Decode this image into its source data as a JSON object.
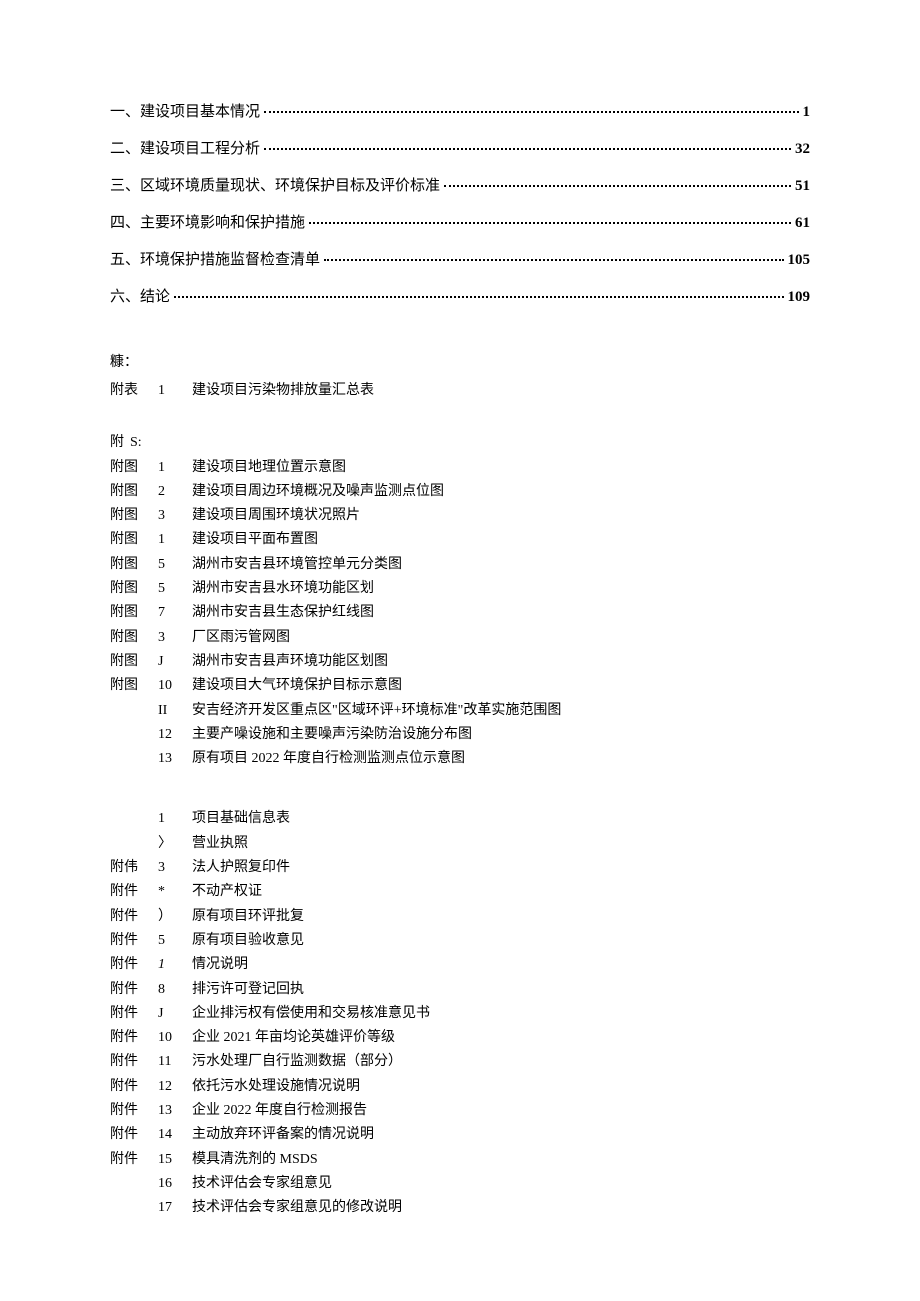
{
  "toc": [
    {
      "title": "一、建设项目基本情况",
      "page": "1"
    },
    {
      "title": "二、建设项目工程分析",
      "page": "32"
    },
    {
      "title": "三、区域环境质量现状、环境保护目标及评价标准",
      "page": "51"
    },
    {
      "title": "四、主要环境影响和保护措施",
      "page": "61"
    },
    {
      "title": "五、环境保护措施监督检查清单",
      "page": "105"
    },
    {
      "title": "六、结论",
      "page": "109"
    }
  ],
  "supplement1_label": "糠：",
  "attachment_table": {
    "prefix": "附表",
    "items": [
      {
        "num": "1",
        "text": "建设项目污染物排放量汇总表"
      }
    ]
  },
  "attachment_figures_header": {
    "prefix": "附",
    "num": "S:"
  },
  "attachment_figures": {
    "prefix": "附图",
    "items": [
      {
        "num": "1",
        "text": "建设项目地理位置示意图"
      },
      {
        "num": "2",
        "text": "建设项目周边环境概况及噪声监测点位图"
      },
      {
        "num": "3",
        "text": "建设项目周围环境状况照片"
      },
      {
        "num": "1",
        "text": "建设项目平面布置图"
      },
      {
        "num": "5",
        "text": "湖州市安吉县环境管控单元分类图"
      },
      {
        "num": "5",
        "text": "湖州市安吉县水环境功能区划"
      },
      {
        "num": "7",
        "text": "湖州市安吉县生态保护红线图"
      },
      {
        "num": "3",
        "text": "厂区雨污管网图"
      },
      {
        "num": "J",
        "text": "湖州市安吉县声环境功能区划图"
      },
      {
        "num": "10",
        "text": "建设项目大气环境保护目标示意图"
      },
      {
        "num": "II",
        "text": "安吉经济开发区重点区\"区域环评+环境标准\"改革实施范围图"
      },
      {
        "num": "12",
        "text": "主要产噪设施和主要噪声污染防治设施分布图"
      },
      {
        "num": "13",
        "text": "原有项目 2022 年度自行检测监测点位示意图"
      }
    ]
  },
  "attachment_files": {
    "items": [
      {
        "prefix": "",
        "num": "1",
        "text": "项目基础信息表"
      },
      {
        "prefix": "",
        "num": "〉",
        "text": "营业执照"
      },
      {
        "prefix": "附伟",
        "num": "3",
        "text": "法人护照复印件"
      },
      {
        "prefix": "附件",
        "num": "*",
        "text": "不动产权证"
      },
      {
        "prefix": "附件",
        "num": "）",
        "text": "原有项目环评批复"
      },
      {
        "prefix": "附件",
        "num": "5",
        "text": "原有项目验收意见"
      },
      {
        "prefix": "附件",
        "num": "1",
        "text": "情况说明",
        "italic": true
      },
      {
        "prefix": "附件",
        "num": "8",
        "text": "排污许可登记回执"
      },
      {
        "prefix": "附件",
        "num": "J",
        "text": "企业排污权有偿使用和交易核准意见书"
      },
      {
        "prefix": "附件",
        "num": "10",
        "text": "企业 2021 年亩均论英雄评价等级"
      },
      {
        "prefix": "附件",
        "num": "11",
        "text": "污水处理厂自行监测数据（部分）"
      },
      {
        "prefix": "附件",
        "num": "12",
        "text": "依托污水处理设施情况说明"
      },
      {
        "prefix": "附件",
        "num": "13",
        "text": "企业 2022 年度自行检测报告"
      },
      {
        "prefix": "附件",
        "num": "14",
        "text": "主动放弃环评备案的情况说明"
      },
      {
        "prefix": "附件",
        "num": "15",
        "text": "模具清洗剂的 MSDS"
      },
      {
        "prefix": "",
        "num": "16",
        "text": "技术评估会专家组意见"
      },
      {
        "prefix": "",
        "num": "17",
        "text": "技术评估会专家组意见的修改说明"
      }
    ]
  }
}
